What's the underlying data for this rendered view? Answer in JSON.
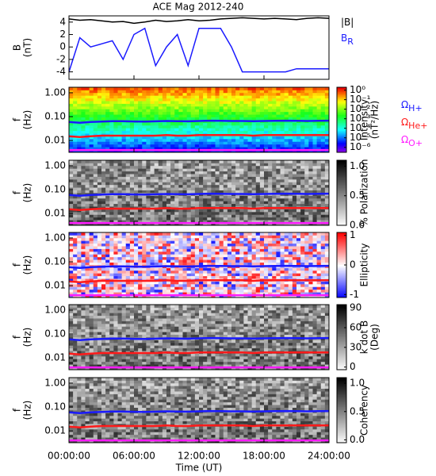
{
  "chart_data": [
    {
      "type": "line",
      "title": "ACE Mag 2012-240",
      "ylabel": [
        "B",
        "(nT)"
      ],
      "x": [
        0,
        1,
        2,
        3,
        4,
        5,
        6,
        7,
        8,
        9,
        10,
        11,
        12,
        13,
        14,
        15,
        16,
        17,
        18,
        19,
        20,
        21,
        22,
        23,
        24
      ],
      "xlim": [
        0,
        24
      ],
      "ylim": [
        -5.2,
        5
      ],
      "yticks": [
        -4,
        -2,
        0,
        2,
        4
      ],
      "series": [
        {
          "name": "|B|",
          "color": "#000000",
          "values": [
            4.5,
            4.3,
            4.4,
            4.2,
            4.0,
            4.1,
            3.8,
            4.0,
            4.3,
            4.1,
            4.2,
            4.4,
            4.2,
            4.3,
            4.5,
            4.6,
            4.7,
            4.6,
            4.5,
            4.6,
            4.5,
            4.4,
            4.6,
            4.7,
            4.6
          ]
        },
        {
          "name": "B",
          "subscript": "R",
          "color": "#1a1aff",
          "values": [
            -4,
            1.5,
            0,
            0.5,
            1,
            -2,
            2,
            3,
            -3,
            0,
            2,
            -3,
            3,
            3,
            3,
            0,
            -4,
            -4,
            -4,
            -4,
            -4,
            -3.5,
            -3.5,
            -3.5,
            -3.5
          ]
        }
      ]
    },
    {
      "type": "spectrogram",
      "colormap": "rainbow",
      "ylabel": [
        "f",
        "(Hz)"
      ],
      "log": true,
      "legend": true,
      "x": [
        0,
        1,
        2,
        3,
        4,
        5,
        6,
        7,
        8,
        9,
        10,
        11,
        12,
        13,
        14,
        15,
        16,
        17,
        18,
        19,
        20,
        21,
        22,
        23,
        24
      ],
      "xlim": [
        0,
        24
      ],
      "ylim": [
        0.0032,
        1.7
      ],
      "yticks": [
        {
          "value": 1,
          "label": "1.00"
        },
        {
          "value": 0.1,
          "label": "0.10"
        },
        {
          "value": 0.01,
          "label": "0.01"
        }
      ],
      "colorbar": {
        "label": [
          "Intensity",
          "(nT²/Hz)"
        ],
        "log": true,
        "lim": [
          3e-07,
          2
        ],
        "ticks": [
          {
            "value": 1,
            "label": "10⁰"
          },
          {
            "value": 0.1,
            "label": "10⁻¹"
          },
          {
            "value": 0.01,
            "label": "10⁻²"
          },
          {
            "value": 0.001,
            "label": "10⁻³"
          },
          {
            "value": 0.0001,
            "label": "10⁻⁴"
          },
          {
            "value": 1e-05,
            "label": "10⁻⁵"
          },
          {
            "value": 1e-06,
            "label": "10⁻⁶"
          }
        ]
      },
      "series": [
        {
          "name": "Ω",
          "subscript": "H+",
          "color": "#1a1aff",
          "values": [
            0.06,
            0.055,
            0.06,
            0.062,
            0.065,
            0.065,
            0.063,
            0.062,
            0.064,
            0.066,
            0.065,
            0.064,
            0.066,
            0.068,
            0.067,
            0.066,
            0.066,
            0.065,
            0.066,
            0.067,
            0.068,
            0.067,
            0.066,
            0.067,
            0.068
          ]
        },
        {
          "name": "Ω",
          "subscript": "He+",
          "color": "#ff1a1a",
          "values": [
            0.015,
            0.014,
            0.015,
            0.016,
            0.016,
            0.016,
            0.016,
            0.016,
            0.016,
            0.017,
            0.016,
            0.016,
            0.017,
            0.017,
            0.017,
            0.017,
            0.017,
            0.016,
            0.017,
            0.017,
            0.017,
            0.017,
            0.017,
            0.017,
            0.017
          ]
        },
        {
          "name": "Ω",
          "subscript": "O+",
          "color": "#ff1aff",
          "values": [
            0.004,
            0.004,
            0.004,
            0.004,
            0.004,
            0.004,
            0.004,
            0.004,
            0.004,
            0.004,
            0.004,
            0.004,
            0.004,
            0.004,
            0.004,
            0.004,
            0.004,
            0.004,
            0.004,
            0.004,
            0.004,
            0.004,
            0.004,
            0.004,
            0.004
          ]
        }
      ]
    },
    {
      "type": "spectrogram",
      "colormap": "gray",
      "ylabel": [
        "f",
        "(Hz)"
      ],
      "log": true,
      "x": [
        0,
        1,
        2,
        3,
        4,
        5,
        6,
        7,
        8,
        9,
        10,
        11,
        12,
        13,
        14,
        15,
        16,
        17,
        18,
        19,
        20,
        21,
        22,
        23,
        24
      ],
      "xlim": [
        0,
        24
      ],
      "ylim": [
        0.0032,
        1.7
      ],
      "yticks": [
        {
          "value": 1,
          "label": "1.00"
        },
        {
          "value": 0.1,
          "label": "0.10"
        },
        {
          "value": 0.01,
          "label": "0.01"
        }
      ],
      "colorbar": {
        "label": [
          "% Polarization"
        ],
        "lim": [
          0,
          1.1
        ],
        "ticks": [
          {
            "value": 0,
            "label": "0.0"
          },
          {
            "value": 0.5,
            "label": "0.5"
          },
          {
            "value": 1,
            "label": "1.0"
          }
        ]
      },
      "series": [
        {
          "name": "Ω",
          "subscript": "H+",
          "color": "#1a1aff",
          "values": [
            0.06,
            0.055,
            0.06,
            0.062,
            0.065,
            0.065,
            0.063,
            0.062,
            0.064,
            0.066,
            0.065,
            0.064,
            0.066,
            0.068,
            0.067,
            0.066,
            0.066,
            0.065,
            0.066,
            0.067,
            0.068,
            0.067,
            0.066,
            0.067,
            0.068
          ]
        },
        {
          "name": "Ω",
          "subscript": "He+",
          "color": "#ff1a1a",
          "values": [
            0.015,
            0.014,
            0.015,
            0.016,
            0.016,
            0.016,
            0.016,
            0.016,
            0.016,
            0.017,
            0.016,
            0.016,
            0.017,
            0.017,
            0.017,
            0.017,
            0.017,
            0.016,
            0.017,
            0.017,
            0.017,
            0.017,
            0.017,
            0.017,
            0.017
          ]
        },
        {
          "name": "Ω",
          "subscript": "O+",
          "color": "#ff1aff",
          "values": [
            0.004,
            0.004,
            0.004,
            0.004,
            0.004,
            0.004,
            0.004,
            0.004,
            0.004,
            0.004,
            0.004,
            0.004,
            0.004,
            0.004,
            0.004,
            0.004,
            0.004,
            0.004,
            0.004,
            0.004,
            0.004,
            0.004,
            0.004,
            0.004,
            0.004
          ]
        }
      ]
    },
    {
      "type": "spectrogram",
      "colormap": "bwr",
      "ylabel": [
        "f",
        "(Hz)"
      ],
      "log": true,
      "x": [
        0,
        1,
        2,
        3,
        4,
        5,
        6,
        7,
        8,
        9,
        10,
        11,
        12,
        13,
        14,
        15,
        16,
        17,
        18,
        19,
        20,
        21,
        22,
        23,
        24
      ],
      "xlim": [
        0,
        24
      ],
      "ylim": [
        0.0032,
        1.7
      ],
      "yticks": [
        {
          "value": 1,
          "label": "1.00"
        },
        {
          "value": 0.1,
          "label": "0.10"
        },
        {
          "value": 0.01,
          "label": "0.01"
        }
      ],
      "colorbar": {
        "label": [
          "Ellipticity"
        ],
        "lim": [
          -1.1,
          1.1
        ],
        "ticks": [
          -1,
          0,
          1
        ]
      },
      "series": [
        {
          "name": "Ω",
          "subscript": "H+",
          "color": "#1a1aff",
          "values": [
            0.06,
            0.055,
            0.06,
            0.062,
            0.065,
            0.065,
            0.063,
            0.062,
            0.064,
            0.066,
            0.065,
            0.064,
            0.066,
            0.068,
            0.067,
            0.066,
            0.066,
            0.065,
            0.066,
            0.067,
            0.068,
            0.067,
            0.066,
            0.067,
            0.068
          ]
        },
        {
          "name": "Ω",
          "subscript": "He+",
          "color": "#ff1a1a",
          "values": [
            0.015,
            0.014,
            0.015,
            0.016,
            0.016,
            0.016,
            0.016,
            0.016,
            0.016,
            0.017,
            0.016,
            0.016,
            0.017,
            0.017,
            0.017,
            0.017,
            0.017,
            0.016,
            0.017,
            0.017,
            0.017,
            0.017,
            0.017,
            0.017,
            0.017
          ]
        },
        {
          "name": "Ω",
          "subscript": "O+",
          "color": "#ff1aff",
          "values": [
            0.004,
            0.004,
            0.004,
            0.004,
            0.004,
            0.004,
            0.004,
            0.004,
            0.004,
            0.004,
            0.004,
            0.004,
            0.004,
            0.004,
            0.004,
            0.004,
            0.004,
            0.004,
            0.004,
            0.004,
            0.004,
            0.004,
            0.004,
            0.004,
            0.004
          ]
        }
      ]
    },
    {
      "type": "spectrogram",
      "colormap": "gray",
      "ylabel": [
        "f",
        "(Hz)"
      ],
      "log": true,
      "x": [
        0,
        1,
        2,
        3,
        4,
        5,
        6,
        7,
        8,
        9,
        10,
        11,
        12,
        13,
        14,
        15,
        16,
        17,
        18,
        19,
        20,
        21,
        22,
        23,
        24
      ],
      "xlim": [
        0,
        24
      ],
      "ylim": [
        0.0032,
        1.7
      ],
      "yticks": [
        {
          "value": 1,
          "label": "1.00"
        },
        {
          "value": 0.1,
          "label": "0.10"
        },
        {
          "value": 0.01,
          "label": "0.01"
        }
      ],
      "colorbar": {
        "label": [
          "k dot B",
          "(Deg)"
        ],
        "lim": [
          -4,
          95
        ],
        "ticks": [
          0,
          30,
          60,
          90
        ]
      },
      "series": [
        {
          "name": "Ω",
          "subscript": "H+",
          "color": "#1a1aff",
          "values": [
            0.06,
            0.055,
            0.06,
            0.062,
            0.065,
            0.065,
            0.063,
            0.062,
            0.064,
            0.066,
            0.065,
            0.064,
            0.066,
            0.068,
            0.067,
            0.066,
            0.066,
            0.065,
            0.066,
            0.067,
            0.068,
            0.067,
            0.066,
            0.067,
            0.068
          ]
        },
        {
          "name": "Ω",
          "subscript": "He+",
          "color": "#ff1a1a",
          "values": [
            0.015,
            0.014,
            0.015,
            0.016,
            0.016,
            0.016,
            0.016,
            0.016,
            0.016,
            0.017,
            0.016,
            0.016,
            0.017,
            0.017,
            0.017,
            0.017,
            0.017,
            0.016,
            0.017,
            0.017,
            0.017,
            0.017,
            0.017,
            0.017,
            0.017
          ]
        },
        {
          "name": "Ω",
          "subscript": "O+",
          "color": "#ff1aff",
          "values": [
            0.004,
            0.004,
            0.004,
            0.004,
            0.004,
            0.004,
            0.004,
            0.004,
            0.004,
            0.004,
            0.004,
            0.004,
            0.004,
            0.004,
            0.004,
            0.004,
            0.004,
            0.004,
            0.004,
            0.004,
            0.004,
            0.004,
            0.004,
            0.004,
            0.004
          ]
        }
      ]
    },
    {
      "type": "spectrogram",
      "colormap": "gray",
      "ylabel": [
        "f",
        "(Hz)"
      ],
      "log": true,
      "x": [
        0,
        1,
        2,
        3,
        4,
        5,
        6,
        7,
        8,
        9,
        10,
        11,
        12,
        13,
        14,
        15,
        16,
        17,
        18,
        19,
        20,
        21,
        22,
        23,
        24
      ],
      "xlim": [
        0,
        24
      ],
      "ylim": [
        0.0032,
        1.7
      ],
      "yticks": [
        {
          "value": 1,
          "label": "1.00"
        },
        {
          "value": 0.1,
          "label": "0.10"
        },
        {
          "value": 0.01,
          "label": "0.01"
        }
      ],
      "colorbar": {
        "label": [
          "Coherency"
        ],
        "lim": [
          -0.05,
          1.1
        ],
        "ticks": [
          {
            "value": 0,
            "label": "0.0"
          },
          {
            "value": 0.5,
            "label": "0.5"
          },
          {
            "value": 1,
            "label": "1.0"
          }
        ]
      },
      "xticks": [
        {
          "value": 0,
          "label": "00:00:00"
        },
        {
          "value": 6,
          "label": "06:00:00"
        },
        {
          "value": 12,
          "label": "12:00:00"
        },
        {
          "value": 18,
          "label": "18:00:00"
        },
        {
          "value": 24,
          "label": "24:00:00"
        }
      ],
      "xlabel": "Time (UT)",
      "series": [
        {
          "name": "Ω",
          "subscript": "H+",
          "color": "#1a1aff",
          "values": [
            0.06,
            0.055,
            0.06,
            0.062,
            0.065,
            0.065,
            0.063,
            0.062,
            0.064,
            0.066,
            0.065,
            0.064,
            0.066,
            0.068,
            0.067,
            0.066,
            0.066,
            0.065,
            0.066,
            0.067,
            0.068,
            0.067,
            0.066,
            0.067,
            0.068
          ]
        },
        {
          "name": "Ω",
          "subscript": "He+",
          "color": "#ff1a1a",
          "values": [
            0.015,
            0.014,
            0.015,
            0.016,
            0.016,
            0.016,
            0.016,
            0.016,
            0.016,
            0.017,
            0.016,
            0.016,
            0.017,
            0.017,
            0.017,
            0.017,
            0.017,
            0.016,
            0.017,
            0.017,
            0.017,
            0.017,
            0.017,
            0.017,
            0.017
          ]
        },
        {
          "name": "Ω",
          "subscript": "O+",
          "color": "#ff1aff",
          "values": [
            0.004,
            0.004,
            0.004,
            0.004,
            0.004,
            0.004,
            0.004,
            0.004,
            0.004,
            0.004,
            0.004,
            0.004,
            0.004,
            0.004,
            0.004,
            0.004,
            0.004,
            0.004,
            0.004,
            0.004,
            0.004,
            0.004,
            0.004,
            0.004,
            0.004
          ]
        }
      ]
    }
  ]
}
